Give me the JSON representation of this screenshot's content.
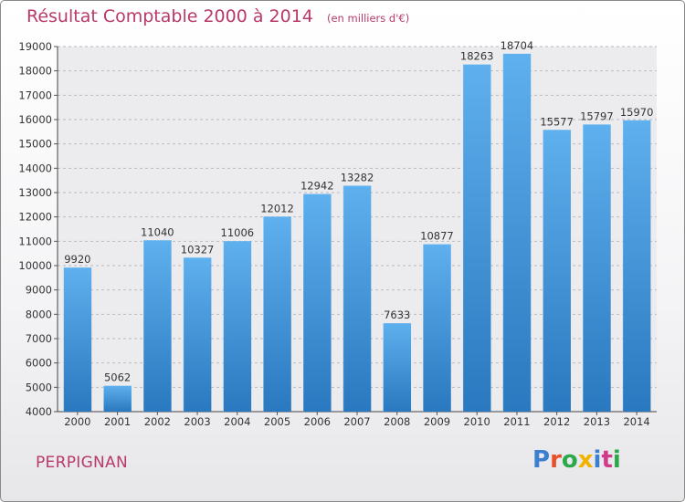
{
  "header": {
    "title": "Résultat Comptable 2000 à 2014",
    "unit": "(en milliers d'€)"
  },
  "footer": {
    "city": "PERPIGNAN"
  },
  "logo": {
    "text": "Proxiti",
    "colors": [
      "#3b7fd0",
      "#e8502a",
      "#2aa84a",
      "#f0b400",
      "#3b7fd0",
      "#d23a8a",
      "#2aa84a"
    ]
  },
  "colors": {
    "bar_top": "#5fb0ee",
    "bar_bottom": "#2a78bf",
    "title": "#b83a6a"
  },
  "chart_data": {
    "type": "bar",
    "title": "Résultat Comptable 2000 à 2014",
    "xlabel": "",
    "ylabel": "",
    "categories": [
      "2000",
      "2001",
      "2002",
      "2003",
      "2004",
      "2005",
      "2006",
      "2007",
      "2008",
      "2009",
      "2010",
      "2011",
      "2012",
      "2013",
      "2014"
    ],
    "values": [
      9920,
      5062,
      11040,
      10327,
      11006,
      12012,
      12942,
      13282,
      7633,
      10877,
      18263,
      18704,
      15577,
      15797,
      15970
    ],
    "ylim": [
      4000,
      19000
    ],
    "yticks": [
      4000,
      5000,
      6000,
      7000,
      8000,
      9000,
      10000,
      11000,
      12000,
      13000,
      14000,
      15000,
      16000,
      17000,
      18000,
      19000
    ],
    "grid": "horizontal-dashed",
    "legend": "none"
  }
}
